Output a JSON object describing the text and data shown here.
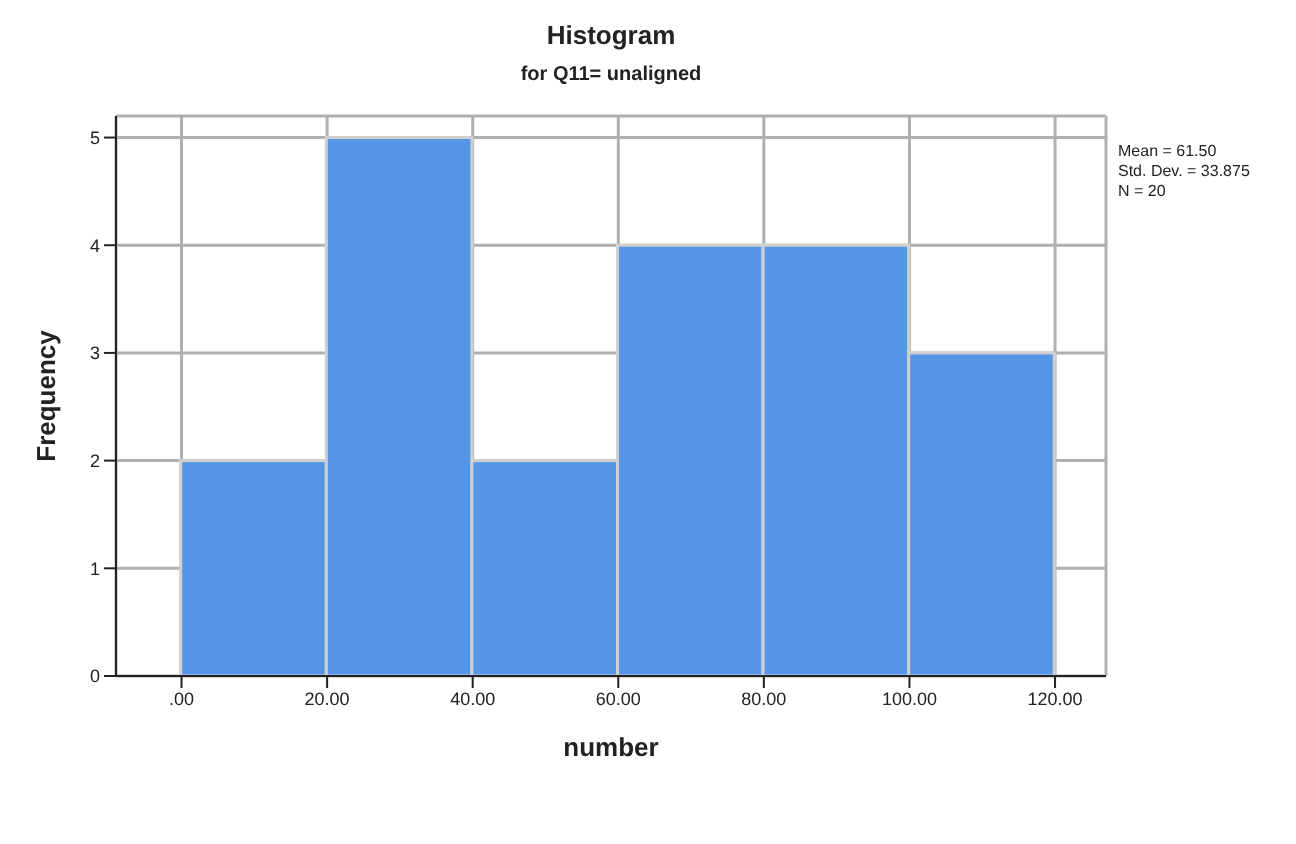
{
  "chart_data": {
    "type": "histogram",
    "title": "Histogram",
    "subtitle": "for Q11= unaligned",
    "xlabel": "number",
    "ylabel": "Frequency",
    "bins": [
      0,
      20,
      40,
      60,
      80,
      100,
      120
    ],
    "values": [
      2,
      5,
      2,
      4,
      4,
      3
    ],
    "color": "#5596e6",
    "xlim": [
      -9,
      127
    ],
    "xticks": [
      {
        "value": 0,
        "label": ".00"
      },
      {
        "value": 20,
        "label": "20.00"
      },
      {
        "value": 40,
        "label": "40.00"
      },
      {
        "value": 60,
        "label": "60.00"
      },
      {
        "value": 80,
        "label": "80.00"
      },
      {
        "value": 100,
        "label": "100.00"
      },
      {
        "value": 120,
        "label": "120.00"
      }
    ],
    "ylim": [
      0,
      5.2
    ],
    "yticks": [
      0,
      1,
      2,
      3,
      4,
      5
    ],
    "grid": true,
    "annotations": [
      "Mean = 61.50",
      "Std. Dev. = 33.875",
      "N = 20"
    ]
  }
}
